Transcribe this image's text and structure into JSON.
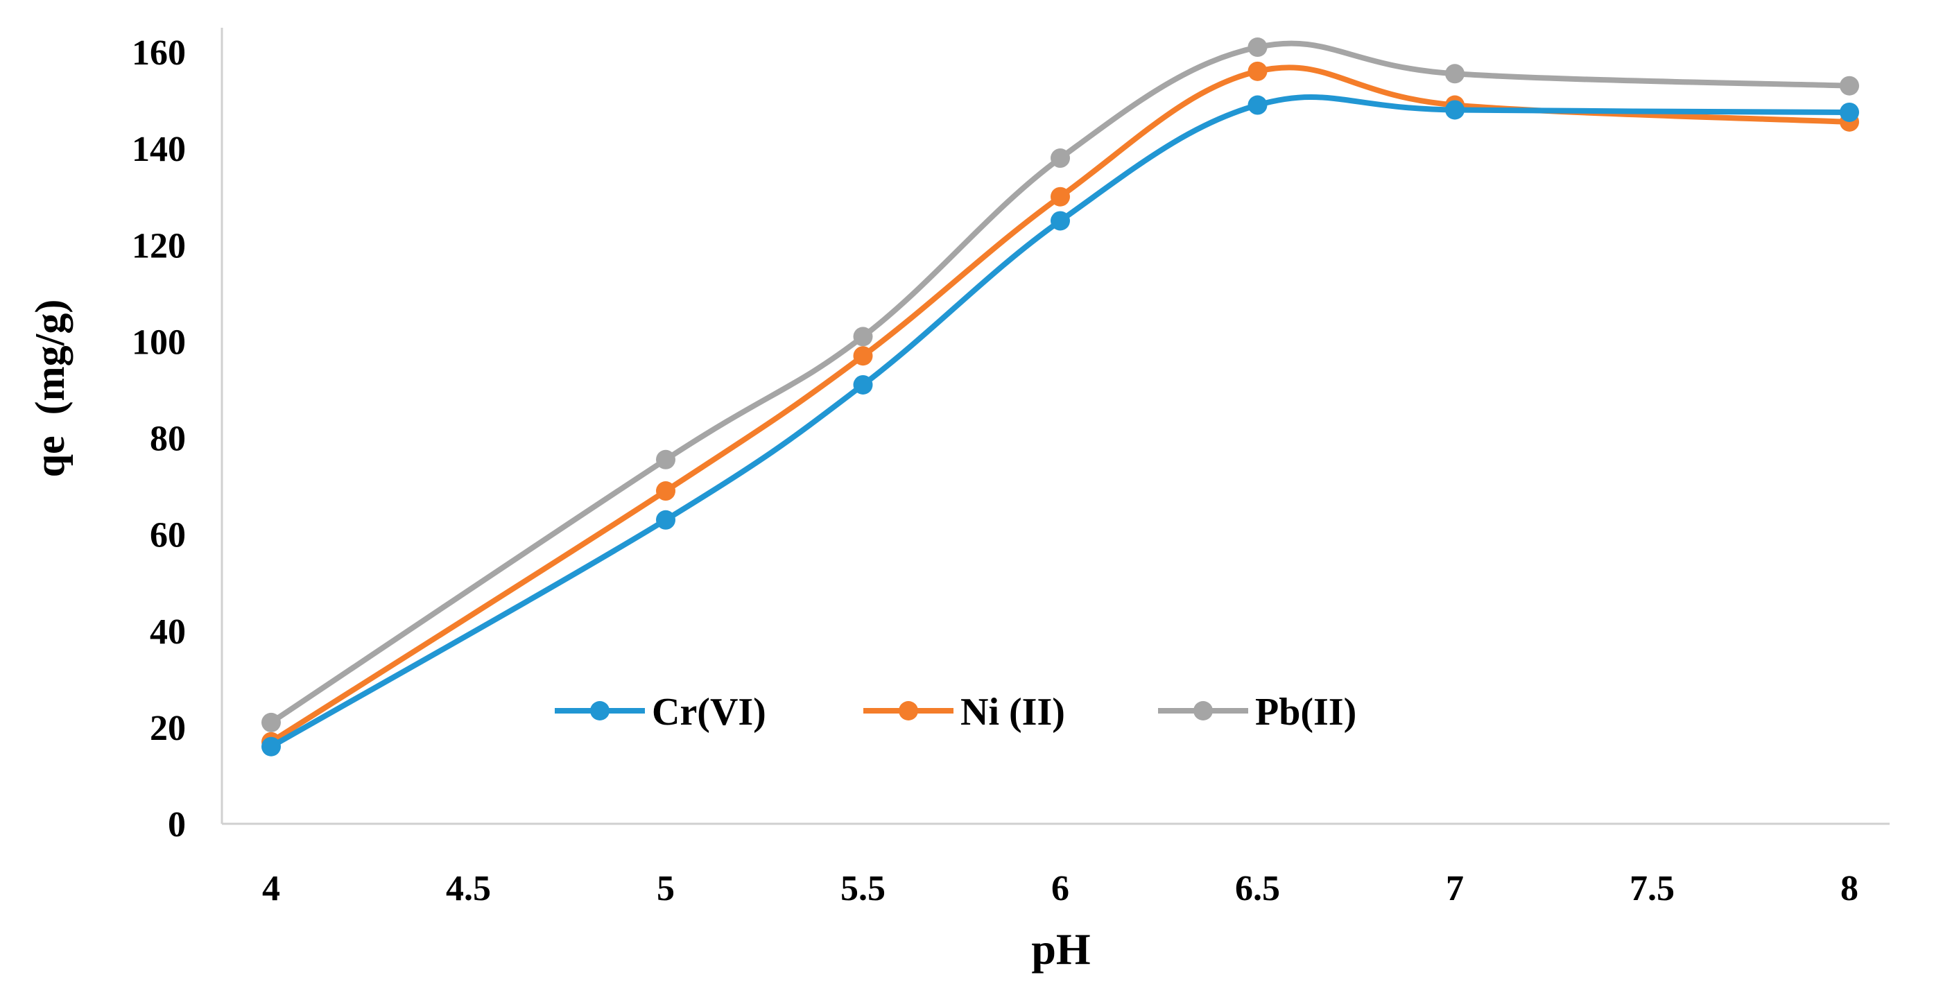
{
  "chart_data": {
    "type": "line",
    "xlabel": "pH",
    "ylabel": "qe  (mg/g)",
    "x": [
      4,
      5,
      5.5,
      6,
      6.5,
      7,
      8
    ],
    "xlim": [
      4,
      8
    ],
    "ylim": [
      0,
      160
    ],
    "xticks": [
      "4",
      "4.5",
      "5",
      "5.5",
      "6",
      "6.5",
      "7",
      "7.5",
      "8"
    ],
    "yticks": [
      "0",
      "20",
      "40",
      "60",
      "80",
      "100",
      "120",
      "140",
      "160"
    ],
    "grid": false,
    "smoothed": true,
    "legend_position": "inside-bottom-center",
    "series": [
      {
        "name": "Cr(VI)",
        "color": "#2196D3",
        "values": [
          16,
          63,
          91,
          125,
          149,
          148,
          147.5
        ]
      },
      {
        "name": "Ni (II)",
        "color": "#F47D2A",
        "values": [
          17,
          69,
          97,
          130,
          156,
          149,
          145.5
        ]
      },
      {
        "name": "Pb(II)",
        "color": "#A5A5A5",
        "values": [
          21,
          75.5,
          101,
          138,
          161,
          155.5,
          153
        ]
      }
    ]
  }
}
